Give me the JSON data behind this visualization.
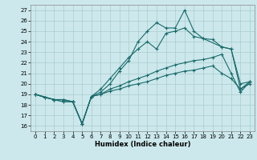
{
  "xlabel": "Humidex (Indice chaleur)",
  "xlim": [
    -0.5,
    23.5
  ],
  "ylim": [
    15.5,
    27.5
  ],
  "xticks": [
    0,
    1,
    2,
    3,
    4,
    5,
    6,
    7,
    8,
    9,
    10,
    11,
    12,
    13,
    14,
    15,
    16,
    17,
    18,
    19,
    20,
    21,
    22,
    23
  ],
  "yticks": [
    16,
    17,
    18,
    19,
    20,
    21,
    22,
    23,
    24,
    25,
    26,
    27
  ],
  "bg_color": "#cce8ec",
  "line_color": "#1a6b6b",
  "grid_color": "#aacccc",
  "lines": [
    {
      "x": [
        0,
        1,
        2,
        3,
        4,
        5,
        6,
        7,
        8,
        9,
        10,
        11,
        12,
        13,
        14,
        15,
        16,
        17,
        18,
        19,
        20,
        21,
        22,
        23
      ],
      "y": [
        19,
        18.7,
        18.5,
        18.5,
        18.3,
        16.2,
        18.8,
        19.0,
        19.3,
        19.5,
        19.8,
        20.0,
        20.2,
        20.5,
        20.8,
        21.0,
        21.2,
        21.3,
        21.5,
        21.7,
        21.0,
        20.5,
        19.5,
        20.0
      ]
    },
    {
      "x": [
        0,
        1,
        2,
        3,
        4,
        5,
        6,
        7,
        8,
        9,
        10,
        11,
        12,
        13,
        14,
        15,
        16,
        17,
        18,
        19,
        20,
        21,
        22,
        23
      ],
      "y": [
        19,
        18.7,
        18.5,
        18.5,
        18.3,
        16.2,
        18.8,
        19.0,
        19.5,
        19.8,
        20.2,
        20.5,
        20.8,
        21.2,
        21.5,
        21.8,
        22.0,
        22.2,
        22.3,
        22.5,
        22.8,
        21.0,
        19.2,
        20.2
      ]
    },
    {
      "x": [
        0,
        2,
        3,
        4,
        5,
        6,
        7,
        8,
        9,
        10,
        11,
        12,
        13,
        14,
        15,
        16,
        17,
        18,
        19,
        20,
        21,
        22,
        23
      ],
      "y": [
        19,
        18.5,
        18.3,
        18.3,
        16.2,
        18.8,
        19.5,
        20.5,
        21.5,
        22.5,
        23.3,
        24.0,
        23.3,
        24.8,
        25.0,
        25.3,
        24.5,
        24.3,
        24.2,
        23.5,
        23.3,
        20.0,
        20.2
      ]
    },
    {
      "x": [
        0,
        2,
        3,
        4,
        5,
        6,
        7,
        8,
        9,
        10,
        11,
        12,
        13,
        14,
        15,
        16,
        17,
        18,
        20,
        21,
        22,
        23
      ],
      "y": [
        19,
        18.5,
        18.3,
        18.3,
        16.2,
        18.8,
        19.2,
        20.0,
        21.2,
        22.2,
        24.0,
        25.0,
        25.8,
        25.3,
        25.3,
        27.0,
        25.0,
        24.3,
        23.5,
        23.3,
        19.5,
        20.2
      ]
    }
  ]
}
